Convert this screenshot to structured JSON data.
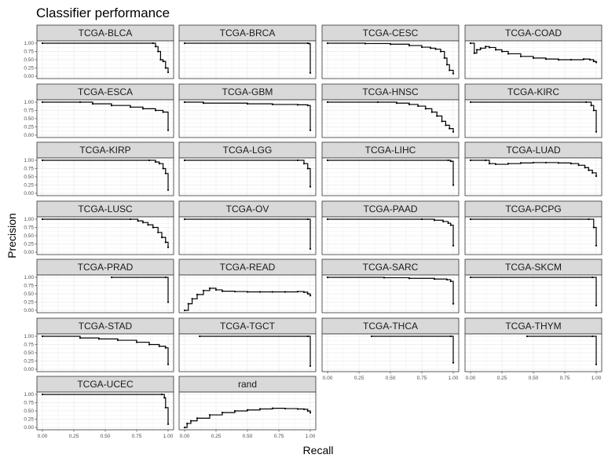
{
  "chart_data": {
    "type": "line",
    "title": "Classifier performance",
    "xlabel": "Recall",
    "ylabel": "Precision",
    "xlim": [
      0,
      1
    ],
    "ylim": [
      0,
      1
    ],
    "x_ticks": [
      "0.00",
      "0.25",
      "0.50",
      "0.75",
      "1.00"
    ],
    "y_ticks": [
      "0.00",
      "0.25",
      "0.50",
      "0.75",
      "1.00"
    ],
    "grid": true,
    "panels": [
      {
        "name": "TCGA-BLCA",
        "x": [
          0,
          0.88,
          0.9,
          0.92,
          0.94,
          0.96,
          0.98,
          1.0
        ],
        "y": [
          1,
          1,
          0.9,
          0.75,
          0.5,
          0.45,
          0.25,
          0.12
        ]
      },
      {
        "name": "TCGA-BRCA",
        "x": [
          0,
          0.98,
          0.99,
          1.0
        ],
        "y": [
          1,
          1,
          0.99,
          0.1
        ]
      },
      {
        "name": "TCGA-CESC",
        "x": [
          0,
          0.3,
          0.5,
          0.65,
          0.75,
          0.82,
          0.86,
          0.9,
          0.93,
          0.95,
          0.97,
          1.0
        ],
        "y": [
          1,
          0.99,
          0.97,
          0.93,
          0.88,
          0.85,
          0.82,
          0.75,
          0.55,
          0.35,
          0.18,
          0.08
        ]
      },
      {
        "name": "TCGA-COAD",
        "x": [
          0,
          0.03,
          0.05,
          0.08,
          0.12,
          0.15,
          0.2,
          0.25,
          0.3,
          0.4,
          0.5,
          0.6,
          0.7,
          0.8,
          0.9,
          0.95,
          0.98,
          1.0
        ],
        "y": [
          1,
          0.7,
          0.8,
          0.85,
          0.9,
          0.87,
          0.8,
          0.75,
          0.68,
          0.6,
          0.55,
          0.52,
          0.5,
          0.5,
          0.52,
          0.5,
          0.45,
          0.42
        ]
      },
      {
        "name": "TCGA-ESCA",
        "x": [
          0,
          0.3,
          0.4,
          0.55,
          0.7,
          0.8,
          0.9,
          0.96,
          1.0
        ],
        "y": [
          1,
          1,
          0.95,
          0.9,
          0.85,
          0.8,
          0.75,
          0.7,
          0.15
        ]
      },
      {
        "name": "TCGA-GBM",
        "x": [
          0,
          0.15,
          0.5,
          0.7,
          0.9,
          0.98,
          1.0
        ],
        "y": [
          1,
          0.97,
          0.95,
          0.93,
          0.92,
          0.9,
          0.15
        ]
      },
      {
        "name": "TCGA-HNSC",
        "x": [
          0,
          0.4,
          0.55,
          0.65,
          0.72,
          0.78,
          0.83,
          0.87,
          0.91,
          0.94,
          0.97,
          1.0
        ],
        "y": [
          1,
          1,
          0.97,
          0.93,
          0.88,
          0.8,
          0.7,
          0.58,
          0.42,
          0.3,
          0.2,
          0.1
        ]
      },
      {
        "name": "TCGA-KIRC",
        "x": [
          0,
          0.92,
          0.96,
          0.98,
          1.0
        ],
        "y": [
          1,
          1,
          0.9,
          0.75,
          0.1
        ]
      },
      {
        "name": "TCGA-KIRP",
        "x": [
          0,
          0.85,
          0.9,
          0.93,
          0.96,
          0.98,
          1.0
        ],
        "y": [
          1,
          1,
          0.95,
          0.9,
          0.75,
          0.6,
          0.1
        ]
      },
      {
        "name": "TCGA-LGG",
        "x": [
          0,
          0.9,
          0.95,
          0.98,
          1.0
        ],
        "y": [
          1,
          1,
          0.9,
          0.75,
          0.2
        ]
      },
      {
        "name": "TCGA-LIHC",
        "x": [
          0,
          0.96,
          0.98,
          1.0
        ],
        "y": [
          1,
          1,
          0.97,
          0.25
        ]
      },
      {
        "name": "TCGA-LUAD",
        "x": [
          0,
          0.12,
          0.15,
          0.2,
          0.3,
          0.4,
          0.5,
          0.6,
          0.7,
          0.8,
          0.86,
          0.91,
          0.94,
          0.97,
          1.0
        ],
        "y": [
          1,
          1,
          0.9,
          0.88,
          0.9,
          0.92,
          0.93,
          0.93,
          0.92,
          0.9,
          0.85,
          0.78,
          0.7,
          0.62,
          0.52
        ]
      },
      {
        "name": "TCGA-LUSC",
        "x": [
          0,
          0.7,
          0.76,
          0.8,
          0.84,
          0.88,
          0.92,
          0.95,
          0.98,
          1.0
        ],
        "y": [
          1,
          1,
          0.95,
          0.9,
          0.83,
          0.75,
          0.6,
          0.45,
          0.3,
          0.15
        ]
      },
      {
        "name": "TCGA-OV",
        "x": [
          0,
          0.98,
          1.0
        ],
        "y": [
          1,
          1,
          0.1
        ]
      },
      {
        "name": "TCGA-PAAD",
        "x": [
          0,
          0.75,
          0.85,
          0.92,
          0.96,
          0.98,
          1.0
        ],
        "y": [
          1,
          1,
          0.97,
          0.93,
          0.88,
          0.82,
          0.2
        ]
      },
      {
        "name": "TCGA-PCPG",
        "x": [
          0,
          0.94,
          0.98,
          1.0
        ],
        "y": [
          1,
          1,
          0.75,
          0.2
        ]
      },
      {
        "name": "TCGA-PRAD",
        "x": [
          0.55,
          0.98,
          1.0
        ],
        "y": [
          1,
          1,
          0.25
        ]
      },
      {
        "name": "TCGA-READ",
        "x": [
          0,
          0.03,
          0.06,
          0.1,
          0.15,
          0.2,
          0.25,
          0.3,
          0.4,
          0.5,
          0.6,
          0.7,
          0.8,
          0.9,
          0.95,
          0.98,
          1.0
        ],
        "y": [
          0,
          0.2,
          0.35,
          0.48,
          0.6,
          0.67,
          0.62,
          0.58,
          0.57,
          0.56,
          0.56,
          0.56,
          0.56,
          0.57,
          0.55,
          0.5,
          0.45
        ]
      },
      {
        "name": "TCGA-SARC",
        "x": [
          0,
          0.45,
          0.65,
          0.85,
          0.95,
          0.98,
          1.0
        ],
        "y": [
          1,
          0.99,
          0.97,
          0.95,
          0.93,
          0.88,
          0.2
        ]
      },
      {
        "name": "TCGA-SKCM",
        "x": [
          0,
          0.97,
          1.0
        ],
        "y": [
          1,
          1,
          0.15
        ]
      },
      {
        "name": "TCGA-STAD",
        "x": [
          0,
          0.3,
          0.45,
          0.6,
          0.75,
          0.85,
          0.93,
          0.98,
          1.0
        ],
        "y": [
          1,
          0.95,
          0.92,
          0.88,
          0.82,
          0.75,
          0.7,
          0.65,
          0.15
        ]
      },
      {
        "name": "TCGA-TGCT",
        "x": [
          0.12,
          0.98,
          1.0
        ],
        "y": [
          1,
          1,
          0.1
        ]
      },
      {
        "name": "TCGA-THCA",
        "x": [
          0.35,
          0.98,
          1.0
        ],
        "y": [
          1,
          1,
          0.2
        ]
      },
      {
        "name": "TCGA-THYM",
        "x": [
          0.45,
          0.97,
          1.0
        ],
        "y": [
          1,
          1,
          0.15
        ]
      },
      {
        "name": "TCGA-UCEC",
        "x": [
          0,
          0.95,
          0.97,
          0.98,
          1.0
        ],
        "y": [
          1,
          1,
          0.9,
          0.6,
          0.1
        ]
      },
      {
        "name": "rand",
        "x": [
          0,
          0.02,
          0.05,
          0.1,
          0.2,
          0.3,
          0.4,
          0.5,
          0.6,
          0.7,
          0.8,
          0.9,
          0.95,
          0.98,
          1.0
        ],
        "y": [
          0,
          0.12,
          0.2,
          0.28,
          0.38,
          0.45,
          0.5,
          0.53,
          0.56,
          0.58,
          0.57,
          0.56,
          0.55,
          0.5,
          0.45
        ]
      }
    ]
  }
}
